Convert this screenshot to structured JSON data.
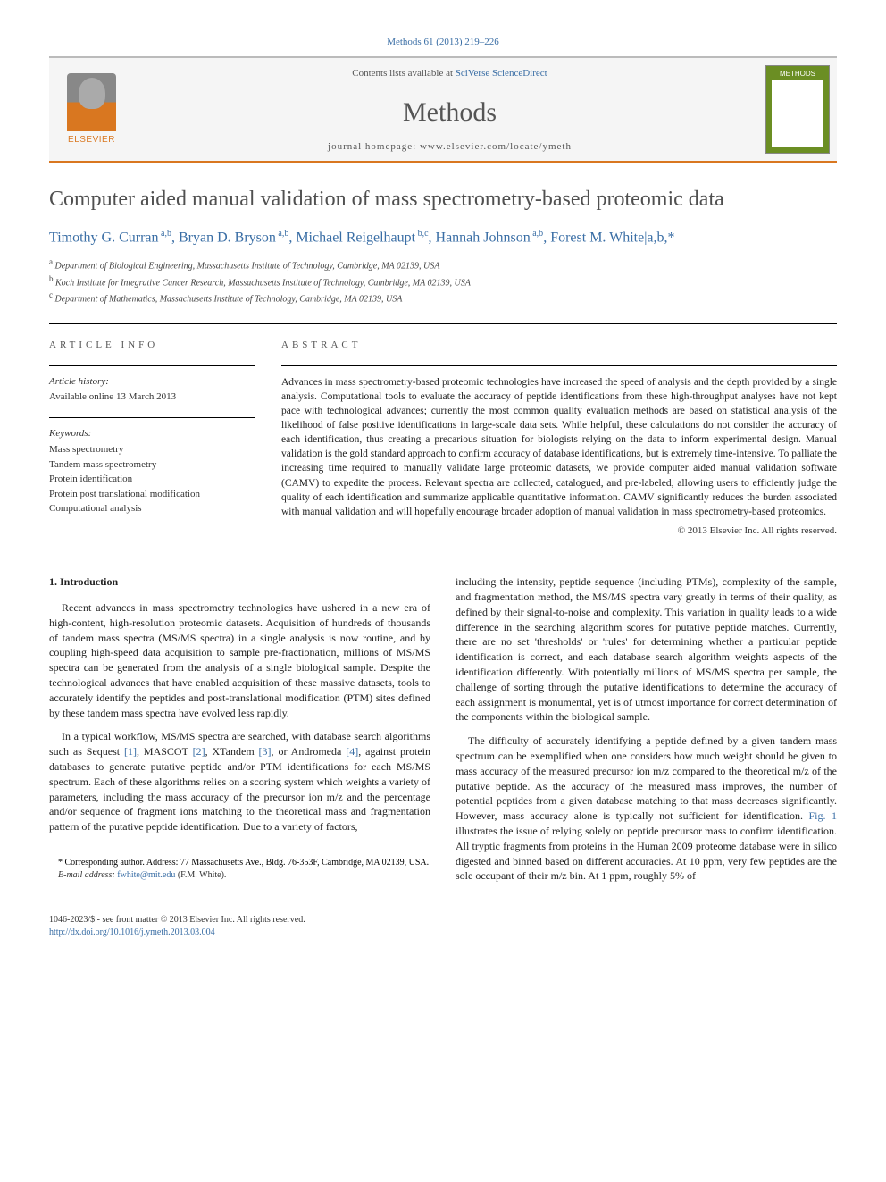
{
  "citation": "Methods 61 (2013) 219–226",
  "header": {
    "contents_prefix": "Contents lists available at ",
    "contents_link": "SciVerse ScienceDirect",
    "journal": "Methods",
    "homepage_prefix": "journal homepage: ",
    "homepage": "www.elsevier.com/locate/ymeth",
    "publisher_label": "ELSEVIER"
  },
  "title": "Computer aided manual validation of mass spectrometry-based proteomic data",
  "authors_html": "Timothy G. Curran|a,b|, Bryan D. Bryson|a,b|, Michael Reigelhaupt|b,c|, Hannah Johnson|a,b|, Forest M. White|a,b,*",
  "affiliations": [
    "a|Department of Biological Engineering, Massachusetts Institute of Technology, Cambridge, MA 02139, USA",
    "b|Koch Institute for Integrative Cancer Research, Massachusetts Institute of Technology, Cambridge, MA 02139, USA",
    "c|Department of Mathematics, Massachusetts Institute of Technology, Cambridge, MA 02139, USA"
  ],
  "info": {
    "section_label": "ARTICLE INFO",
    "history_label": "Article history:",
    "history_text": "Available online 13 March 2013",
    "keywords_label": "Keywords:",
    "keywords": [
      "Mass spectrometry",
      "Tandem mass spectrometry",
      "Protein identification",
      "Protein post translational modification",
      "Computational analysis"
    ]
  },
  "abstract": {
    "label": "ABSTRACT",
    "text": "Advances in mass spectrometry-based proteomic technologies have increased the speed of analysis and the depth provided by a single analysis. Computational tools to evaluate the accuracy of peptide identifications from these high-throughput analyses have not kept pace with technological advances; currently the most common quality evaluation methods are based on statistical analysis of the likelihood of false positive identifications in large-scale data sets. While helpful, these calculations do not consider the accuracy of each identification, thus creating a precarious situation for biologists relying on the data to inform experimental design. Manual validation is the gold standard approach to confirm accuracy of database identifications, but is extremely time-intensive. To palliate the increasing time required to manually validate large proteomic datasets, we provide computer aided manual validation software (CAMV) to expedite the process. Relevant spectra are collected, catalogued, and pre-labeled, allowing users to efficiently judge the quality of each identification and summarize applicable quantitative information. CAMV significantly reduces the burden associated with manual validation and will hopefully encourage broader adoption of manual validation in mass spectrometry-based proteomics.",
    "copyright": "© 2013 Elsevier Inc. All rights reserved."
  },
  "section1": {
    "heading": "1. Introduction",
    "para1": "Recent advances in mass spectrometry technologies have ushered in a new era of high-content, high-resolution proteomic datasets. Acquisition of hundreds of thousands of tandem mass spectra (MS/MS spectra) in a single analysis is now routine, and by coupling high-speed data acquisition to sample pre-fractionation, millions of MS/MS spectra can be generated from the analysis of a single biological sample. Despite the technological advances that have enabled acquisition of these massive datasets, tools to accurately identify the peptides and post-translational modification (PTM) sites defined by these tandem mass spectra have evolved less rapidly.",
    "para2_a": "In a typical workflow, MS/MS spectra are searched, with database search algorithms such as Sequest ",
    "ref1": "[1]",
    "para2_b": ", MASCOT ",
    "ref2": "[2]",
    "para2_c": ", XTandem ",
    "ref3": "[3]",
    "para2_d": ", or Andromeda ",
    "ref4": "[4]",
    "para2_e": ", against protein databases to generate putative peptide and/or PTM identifications for each MS/MS spectrum. Each of these algorithms relies on a scoring system which weights a variety of parameters, including the mass accuracy of the precursor ion m/z and the percentage and/or sequence of fragment ions matching to the theoretical mass and fragmentation pattern of the putative peptide identification. Due to a variety of factors,",
    "para3": "including the intensity, peptide sequence (including PTMs), complexity of the sample, and fragmentation method, the MS/MS spectra vary greatly in terms of their quality, as defined by their signal-to-noise and complexity. This variation in quality leads to a wide difference in the searching algorithm scores for putative peptide matches. Currently, there are no set 'thresholds' or 'rules' for determining whether a particular peptide identification is correct, and each database search algorithm weights aspects of the identification differently. With potentially millions of MS/MS spectra per sample, the challenge of sorting through the putative identifications to determine the accuracy of each assignment is monumental, yet is of utmost importance for correct determination of the components within the biological sample.",
    "para4_a": "The difficulty of accurately identifying a peptide defined by a given tandem mass spectrum can be exemplified when one considers how much weight should be given to mass accuracy of the measured precursor ion m/z compared to the theoretical m/z of the putative peptide. As the accuracy of the measured mass improves, the number of potential peptides from a given database matching to that mass decreases significantly. However, mass accuracy alone is typically not sufficient for identification. ",
    "fig1": "Fig. 1",
    "para4_b": " illustrates the issue of relying solely on peptide precursor mass to confirm identification. All tryptic fragments from proteins in the Human 2009 proteome database were in silico digested and binned based on different accuracies. At 10 ppm, very few peptides are the sole occupant of their m/z bin. At 1 ppm, roughly 5% of"
  },
  "footnotes": {
    "corresp_label": "* Corresponding author. Address: 77 Massachusetts Ave., Bldg. 76-353F, Cambridge, MA 02139, USA.",
    "email_label": "E-mail address:",
    "email": "fwhite@mit.edu",
    "email_name": "(F.M. White)."
  },
  "bottom": {
    "issn": "1046-2023/$ - see front matter © 2013 Elsevier Inc. All rights reserved.",
    "doi": "http://dx.doi.org/10.1016/j.ymeth.2013.03.004"
  },
  "colors": {
    "link": "#3a6ea5",
    "accent": "#d97720",
    "text": "#222222"
  }
}
